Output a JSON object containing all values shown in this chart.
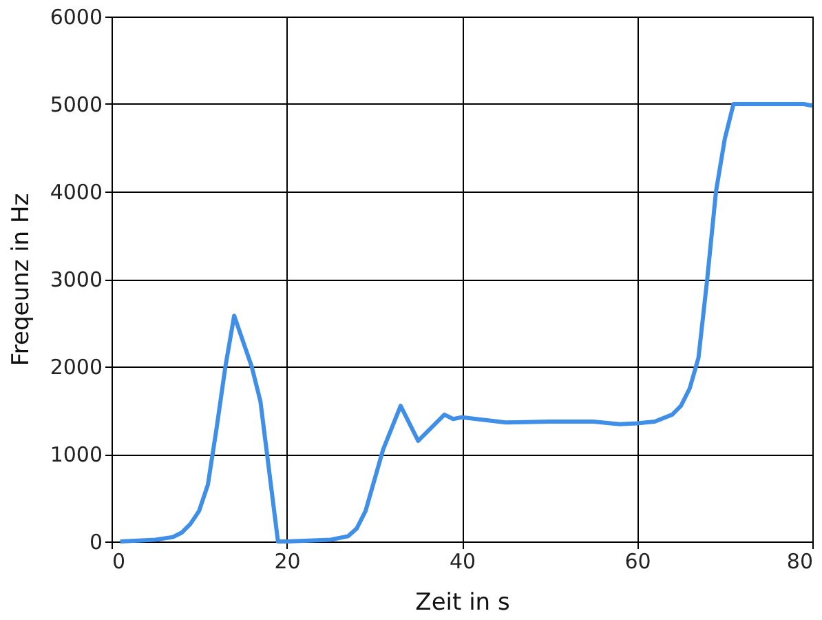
{
  "chart_data": {
    "type": "line",
    "xlabel": "Zeit in s",
    "ylabel": "Freqeunz in Hz",
    "xlim": [
      0,
      80
    ],
    "xticks": [
      0,
      20,
      40,
      60,
      80
    ],
    "ylim": [
      0,
      6000
    ],
    "yticks": [
      0,
      1000,
      2000,
      3000,
      4000,
      5000,
      6000
    ],
    "grid": true,
    "x": [
      1,
      5,
      7,
      8,
      9,
      10,
      11,
      12,
      13,
      14,
      16,
      17,
      18,
      19,
      20,
      25,
      27,
      28,
      29,
      30,
      31,
      33,
      35,
      38,
      39,
      40,
      45,
      50,
      55,
      58,
      60,
      62,
      64,
      65,
      66,
      67,
      68,
      69,
      70,
      71,
      79,
      80
    ],
    "series": [
      {
        "color": "#3f8ee8",
        "values": [
          0,
          20,
          50,
          100,
          200,
          350,
          650,
          1300,
          2000,
          2580,
          2000,
          1600,
          800,
          0,
          0,
          20,
          60,
          150,
          350,
          700,
          1050,
          1550,
          1150,
          1450,
          1400,
          1420,
          1360,
          1370,
          1370,
          1340,
          1350,
          1370,
          1450,
          1550,
          1750,
          2100,
          3000,
          4000,
          4600,
          5000,
          5000,
          4980
        ]
      }
    ]
  }
}
